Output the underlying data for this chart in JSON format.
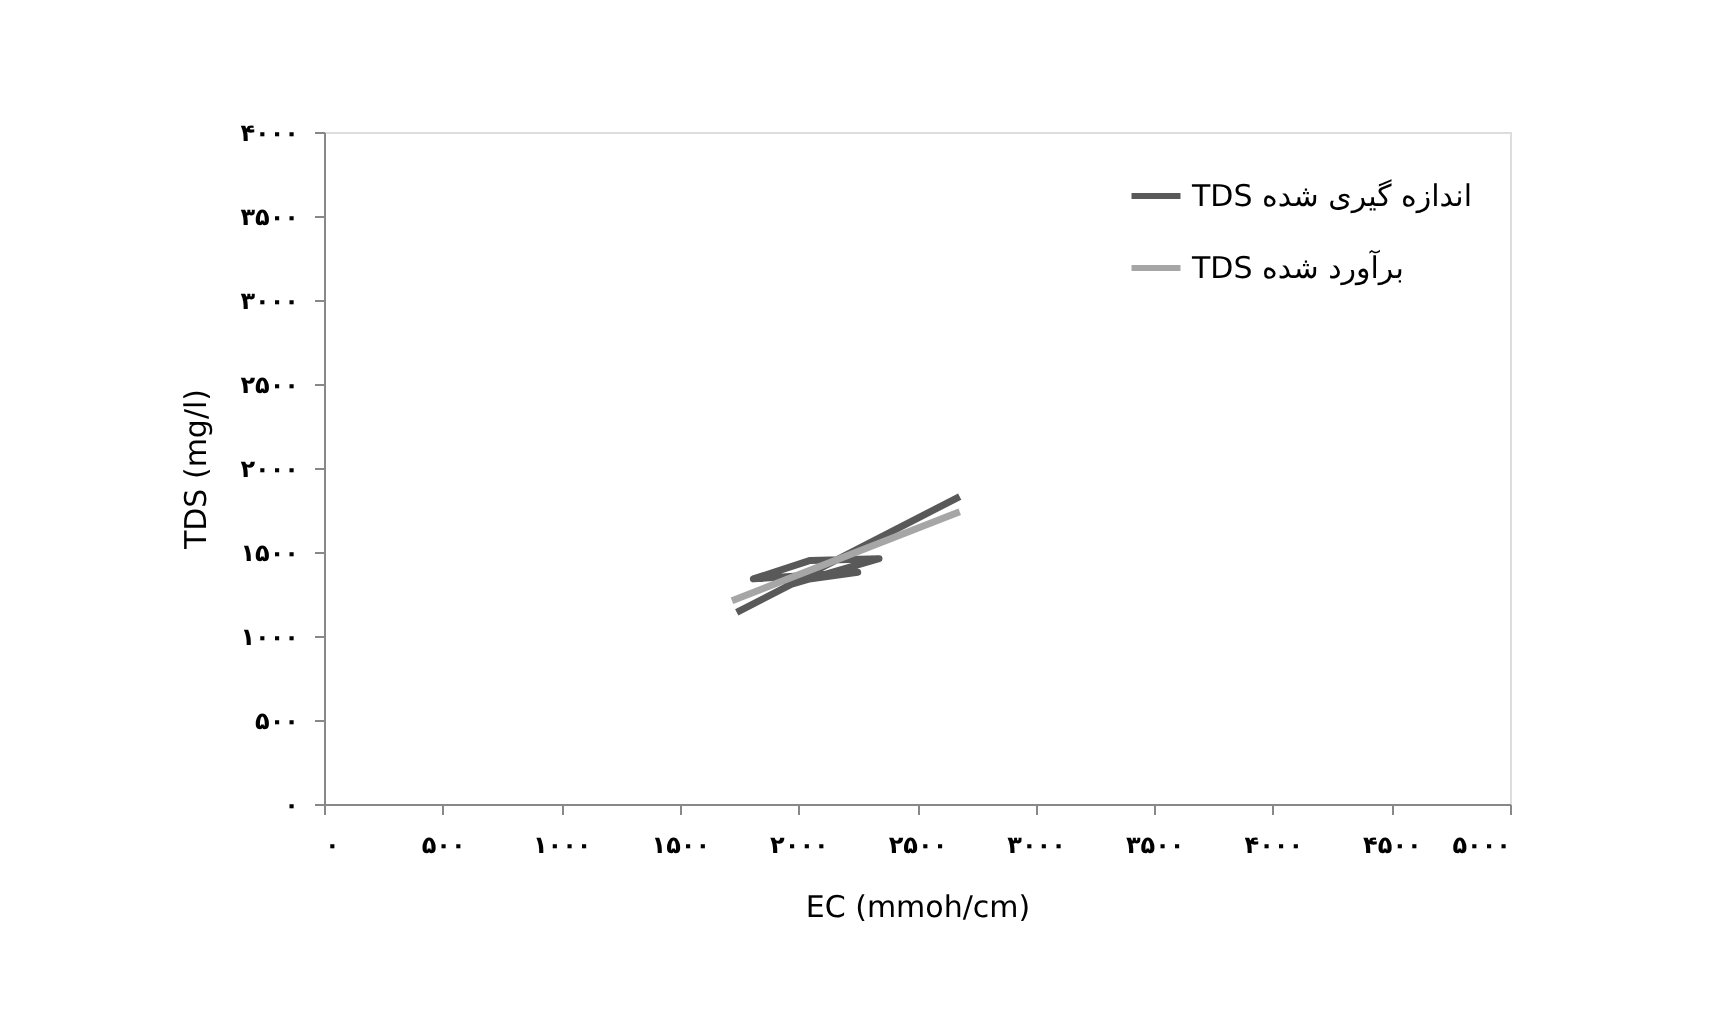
{
  "chart_data": {
    "type": "line",
    "xlabel": "EC (mmoh/cm)",
    "ylabel": "TDS (mg/l)",
    "xlim": [
      0,
      5000
    ],
    "ylim": [
      0,
      4000
    ],
    "xticks": [
      {
        "value": 0,
        "label": "۰"
      },
      {
        "value": 500,
        "label": "۵۰۰"
      },
      {
        "value": 1000,
        "label": "۱۰۰۰"
      },
      {
        "value": 1500,
        "label": "۱۵۰۰"
      },
      {
        "value": 2000,
        "label": "۲۰۰۰"
      },
      {
        "value": 2500,
        "label": "۲۵۰۰"
      },
      {
        "value": 3000,
        "label": "۳۰۰۰"
      },
      {
        "value": 3500,
        "label": "۳۵۰۰"
      },
      {
        "value": 4000,
        "label": "۴۰۰۰"
      },
      {
        "value": 4500,
        "label": "۴۵۰۰"
      },
      {
        "value": 5000,
        "label": "۵۰۰۰"
      }
    ],
    "yticks": [
      {
        "value": 0,
        "label": "۰"
      },
      {
        "value": 500,
        "label": "۵۰۰"
      },
      {
        "value": 1000,
        "label": "۱۰۰۰"
      },
      {
        "value": 1500,
        "label": "۱۵۰۰"
      },
      {
        "value": 2000,
        "label": "۲۰۰۰"
      },
      {
        "value": 2500,
        "label": "۲۵۰۰"
      },
      {
        "value": 3000,
        "label": "۳۰۰۰"
      },
      {
        "value": 3500,
        "label": "۳۵۰۰"
      },
      {
        "value": 4000,
        "label": "۴۰۰۰"
      }
    ],
    "grid": false,
    "legend": "top right",
    "marker": "none",
    "line_style": "solid",
    "series": [
      {
        "name": "TDS اندازه گیری شده",
        "color": "#595959",
        "x": [
          1740,
          2000,
          2250,
          1810,
          2050,
          2340,
          1950,
          2680
        ],
        "values": [
          1140,
          1330,
          1380,
          1340,
          1450,
          1460,
          1300,
          1830
        ]
      },
      {
        "name": "TDS برآورد شده",
        "color": "#a6a6a6",
        "x": [
          1720,
          2680
        ],
        "values": [
          1210,
          1740
        ]
      }
    ]
  }
}
